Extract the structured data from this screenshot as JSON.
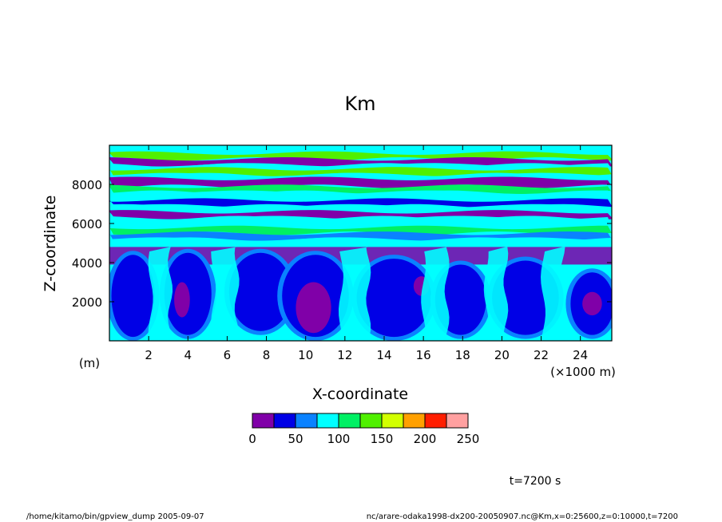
{
  "chart_data": {
    "type": "heatmap",
    "title": "Km",
    "xlabel": "X-coordinate",
    "ylabel": "Z-coordinate",
    "x_unit": "(×1000 m)",
    "y_unit": "(m)",
    "xlim": [
      0,
      25600
    ],
    "ylim": [
      0,
      10000
    ],
    "x_ticks": [
      2,
      4,
      6,
      8,
      10,
      12,
      14,
      16,
      18,
      20,
      22,
      24
    ],
    "y_ticks": [
      2000,
      4000,
      6000,
      8000
    ],
    "colorbar": {
      "levels": [
        0,
        25,
        50,
        75,
        100,
        125,
        150,
        175,
        200,
        225,
        250
      ],
      "labels": [
        "0",
        "50",
        "100",
        "150",
        "200",
        "250"
      ],
      "colors": [
        "#8000a8",
        "#0000e6",
        "#0a82ff",
        "#00ffff",
        "#00f064",
        "#50f000",
        "#d2ff00",
        "#ffa000",
        "#ff1e00",
        "#ffa0a0"
      ]
    },
    "bands": [
      {
        "z0": 9300,
        "z1": 9600,
        "level": 5
      },
      {
        "z0": 9000,
        "z1": 9300,
        "level": 0
      },
      {
        "z0": 8800,
        "z1": 9000,
        "level": 3
      },
      {
        "z0": 8500,
        "z1": 8800,
        "level": 5
      },
      {
        "z0": 8300,
        "z1": 8500,
        "level": 3
      },
      {
        "z0": 7900,
        "z1": 8300,
        "level": 0
      },
      {
        "z0": 7600,
        "z1": 7900,
        "level": 4
      },
      {
        "z0": 7200,
        "z1": 7600,
        "level": 3
      },
      {
        "z0": 6900,
        "z1": 7200,
        "level": 1
      },
      {
        "z0": 6600,
        "z1": 6900,
        "level": 3
      },
      {
        "z0": 6300,
        "z1": 6600,
        "level": 0
      },
      {
        "z0": 5800,
        "z1": 6300,
        "level": 3
      },
      {
        "z0": 5500,
        "z1": 5800,
        "level": 4
      },
      {
        "z0": 5200,
        "z1": 5500,
        "level": 2
      },
      {
        "z0": 4800,
        "z1": 5200,
        "level": 3
      }
    ],
    "cells": [
      {
        "xc": 1200,
        "zc": 2300,
        "rx": 1100,
        "rz": 2100,
        "level": 1
      },
      {
        "xc": 4000,
        "zc": 2400,
        "rx": 1200,
        "rz": 2100,
        "level": 1
      },
      {
        "xc": 7700,
        "zc": 2500,
        "rx": 1600,
        "rz": 2000,
        "level": 1
      },
      {
        "xc": 10500,
        "zc": 2300,
        "rx": 1700,
        "rz": 2100,
        "level": 1
      },
      {
        "xc": 14500,
        "zc": 2200,
        "rx": 1900,
        "rz": 2000,
        "level": 1
      },
      {
        "xc": 17900,
        "zc": 2100,
        "rx": 1300,
        "rz": 1800,
        "level": 1
      },
      {
        "xc": 21200,
        "zc": 2200,
        "rx": 1700,
        "rz": 1900,
        "level": 1
      },
      {
        "xc": 24600,
        "zc": 1900,
        "rx": 1100,
        "rz": 1600,
        "level": 1
      },
      {
        "xc": 10400,
        "zc": 1700,
        "rx": 900,
        "rz": 1300,
        "level": 0
      },
      {
        "xc": 3700,
        "zc": 2100,
        "rx": 400,
        "rz": 900,
        "level": 0
      },
      {
        "xc": 15900,
        "zc": 2800,
        "rx": 400,
        "rz": 500,
        "level": 0
      },
      {
        "xc": 24600,
        "zc": 1900,
        "rx": 500,
        "rz": 600,
        "level": 0
      }
    ],
    "top_layer": {
      "z0": 3900,
      "z1": 4800,
      "level": 0
    },
    "plumes": [
      {
        "xc": 2600,
        "w": 500,
        "level": 3
      },
      {
        "xc": 5900,
        "w": 600,
        "level": 3
      },
      {
        "xc": 12500,
        "w": 700,
        "level": 3
      },
      {
        "xc": 16600,
        "w": 600,
        "level": 3
      },
      {
        "xc": 19700,
        "w": 500,
        "level": 3
      },
      {
        "xc": 22600,
        "w": 500,
        "level": 3
      }
    ]
  },
  "footer": {
    "time_label": "t=7200 s",
    "left_note": "/home/kitamo/bin/gpview_dump  2005-09-07",
    "right_note": "nc/arare-odaka1998-dx200-20050907.nc@Km,x=0:25600,z=0:10000,t=7200"
  }
}
